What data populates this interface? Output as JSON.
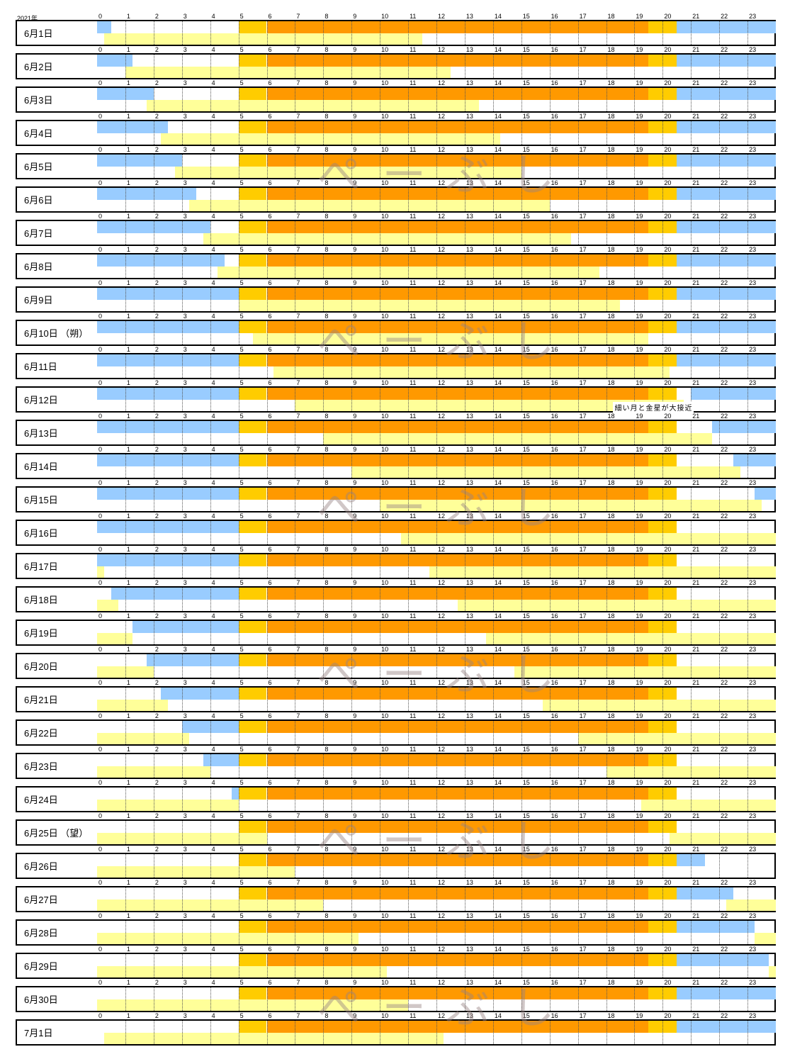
{
  "year_label": "2021年",
  "watermark_text": "ぺーぶし",
  "colors": {
    "moon": "#99ccff",
    "sun_edge": "#ffcc00",
    "sun_main": "#ff9900",
    "sky": "#ffff99"
  },
  "chart_data": {
    "type": "gantt",
    "x_axis": {
      "ticks": [
        "0",
        "1",
        "2",
        "3",
        "4",
        "5",
        "6",
        "7",
        "8",
        "9",
        "10",
        "11",
        "12",
        "13",
        "14",
        "15",
        "16",
        "17",
        "18",
        "19",
        "20",
        "21",
        "22",
        "23"
      ],
      "range": [
        0,
        24
      ]
    },
    "rows": [
      {
        "label": "6月1日",
        "moon": [
          [
            0,
            0.5
          ],
          [
            20.5,
            24
          ]
        ],
        "sky": [
          [
            0.25,
            11.5
          ]
        ],
        "note": ""
      },
      {
        "label": "6月2日",
        "moon": [
          [
            0,
            1.25
          ],
          [
            20.5,
            24
          ]
        ],
        "sky": [
          [
            1,
            12.5
          ]
        ],
        "note": ""
      },
      {
        "label": "6月3日",
        "moon": [
          [
            0,
            2
          ],
          [
            20.5,
            24
          ]
        ],
        "sky": [
          [
            1.75,
            13.5
          ]
        ],
        "note": ""
      },
      {
        "label": "6月4日",
        "moon": [
          [
            0,
            2.5
          ],
          [
            20.5,
            24
          ]
        ],
        "sky": [
          [
            2.25,
            14.25
          ]
        ],
        "note": ""
      },
      {
        "label": "6月5日",
        "moon": [
          [
            0,
            3
          ],
          [
            20.5,
            24
          ]
        ],
        "sky": [
          [
            2.75,
            15
          ]
        ],
        "note": ""
      },
      {
        "label": "6月6日",
        "moon": [
          [
            0,
            3.5
          ],
          [
            20.5,
            24
          ]
        ],
        "sky": [
          [
            3.25,
            16
          ]
        ],
        "note": ""
      },
      {
        "label": "6月7日",
        "moon": [
          [
            0,
            4
          ],
          [
            20.5,
            24
          ]
        ],
        "sky": [
          [
            3.75,
            16.75
          ]
        ],
        "note": ""
      },
      {
        "label": "6月8日",
        "moon": [
          [
            0,
            4.5
          ],
          [
            20.5,
            24
          ]
        ],
        "sky": [
          [
            4.25,
            17.75
          ]
        ],
        "note": ""
      },
      {
        "label": "6月9日",
        "moon": [
          [
            0,
            5
          ],
          [
            20.5,
            24
          ]
        ],
        "sky": [
          [
            5,
            18.5
          ]
        ],
        "note": ""
      },
      {
        "label": "6月10日 （朔）",
        "moon": [
          [
            0,
            5
          ],
          [
            20.5,
            24
          ]
        ],
        "sky": [
          [
            5.5,
            19.5
          ]
        ],
        "note": ""
      },
      {
        "label": "6月11日",
        "moon": [
          [
            0,
            5
          ],
          [
            20.5,
            24
          ]
        ],
        "sky": [
          [
            6.25,
            20.25
          ]
        ],
        "note": ""
      },
      {
        "label": "6月12日",
        "moon": [
          [
            0,
            5
          ],
          [
            21,
            24
          ]
        ],
        "sky": [
          [
            7,
            20.75
          ]
        ],
        "note": "細い月と金星が大接近"
      },
      {
        "label": "6月13日",
        "moon": [
          [
            0,
            5
          ],
          [
            21.75,
            24
          ]
        ],
        "sky": [
          [
            8,
            21.75
          ]
        ],
        "note": ""
      },
      {
        "label": "6月14日",
        "moon": [
          [
            0,
            5
          ],
          [
            22.5,
            24
          ]
        ],
        "sky": [
          [
            9,
            22.75
          ]
        ],
        "note": ""
      },
      {
        "label": "6月15日",
        "moon": [
          [
            0,
            5
          ],
          [
            23.25,
            24
          ]
        ],
        "sky": [
          [
            10,
            23.5
          ]
        ],
        "note": ""
      },
      {
        "label": "6月16日",
        "moon": [
          [
            0,
            5
          ]
        ],
        "sky": [
          [
            10.75,
            24
          ]
        ],
        "note": ""
      },
      {
        "label": "6月17日",
        "moon": [
          [
            0,
            5
          ]
        ],
        "sky": [
          [
            0,
            0.25
          ],
          [
            11.75,
            24
          ]
        ],
        "note": ""
      },
      {
        "label": "6月18日",
        "moon": [
          [
            0.5,
            5
          ]
        ],
        "sky": [
          [
            0,
            0.75
          ],
          [
            12.75,
            24
          ]
        ],
        "note": ""
      },
      {
        "label": "6月19日",
        "moon": [
          [
            1.25,
            5
          ]
        ],
        "sky": [
          [
            0,
            1.25
          ],
          [
            13.75,
            24
          ]
        ],
        "note": ""
      },
      {
        "label": "6月20日",
        "moon": [
          [
            1.75,
            5
          ]
        ],
        "sky": [
          [
            0,
            2
          ],
          [
            14.75,
            24
          ]
        ],
        "note": ""
      },
      {
        "label": "6月21日",
        "moon": [
          [
            2.25,
            5
          ]
        ],
        "sky": [
          [
            0,
            2.5
          ],
          [
            15.75,
            24
          ]
        ],
        "note": ""
      },
      {
        "label": "6月22日",
        "moon": [
          [
            3,
            5
          ]
        ],
        "sky": [
          [
            0,
            3.25
          ],
          [
            17,
            24
          ]
        ],
        "note": ""
      },
      {
        "label": "6月23日",
        "moon": [
          [
            3.75,
            5
          ]
        ],
        "sky": [
          [
            0,
            4
          ],
          [
            18,
            24
          ]
        ],
        "note": ""
      },
      {
        "label": "6月24日",
        "moon": [
          [
            4.75,
            5
          ]
        ],
        "sky": [
          [
            0,
            5
          ],
          [
            19.25,
            24
          ]
        ],
        "note": ""
      },
      {
        "label": "6月25日 （望）",
        "moon": [],
        "sky": [
          [
            0,
            6
          ],
          [
            20.25,
            24
          ]
        ],
        "note": ""
      },
      {
        "label": "6月26日",
        "moon": [
          [
            20.5,
            21.5
          ]
        ],
        "sky": [
          [
            0,
            7
          ]
        ],
        "note": ""
      },
      {
        "label": "6月27日",
        "moon": [
          [
            20.5,
            22.5
          ]
        ],
        "sky": [
          [
            0,
            8
          ],
          [
            22.25,
            24
          ]
        ],
        "note": ""
      },
      {
        "label": "6月28日",
        "moon": [
          [
            20.5,
            23.25
          ]
        ],
        "sky": [
          [
            0,
            9.25
          ],
          [
            23.25,
            24
          ]
        ],
        "note": ""
      },
      {
        "label": "6月29日",
        "moon": [
          [
            20.5,
            23.75
          ]
        ],
        "sky": [
          [
            0,
            10.25
          ],
          [
            23.75,
            24
          ]
        ],
        "note": ""
      },
      {
        "label": "6月30日",
        "moon": [
          [
            20.5,
            24
          ]
        ],
        "sky": [
          [
            0,
            11
          ]
        ],
        "note": ""
      },
      {
        "label": "7月1日",
        "moon": [
          [
            20.5,
            24
          ]
        ],
        "sky": [
          [
            0.25,
            12.25
          ]
        ],
        "note": ""
      }
    ],
    "sun_bar": {
      "edge_before": [
        5,
        6
      ],
      "main": [
        6,
        19.5
      ],
      "edge_after": [
        19.5,
        20.5
      ]
    },
    "watermark_rows": [
      4,
      9,
      14,
      19,
      24,
      29
    ]
  }
}
